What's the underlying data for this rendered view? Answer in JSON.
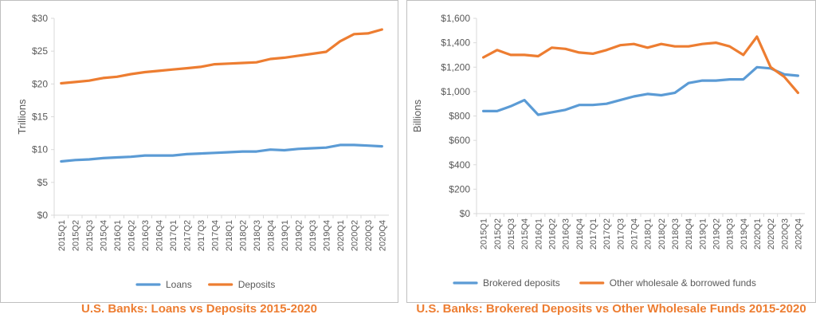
{
  "colors": {
    "blue": "#5b9bd5",
    "orange": "#ed7d31",
    "caption": "#ed7d31",
    "frame": "#bfbfbf",
    "grid": "#d9d9d9",
    "text": "#595959"
  },
  "chart_data": [
    {
      "type": "line",
      "title": "U.S. Banks: Loans vs Deposits 2015-2020",
      "ylabel": "Trillions",
      "ylim": [
        0,
        30
      ],
      "yticks": [
        "$0",
        "$5",
        "$10",
        "$15",
        "$20",
        "$25",
        "$30"
      ],
      "ytick_values": [
        0,
        5,
        10,
        15,
        20,
        25,
        30
      ],
      "grid": false,
      "legend": "bottom",
      "categories": [
        "2015Q1",
        "2015Q2",
        "2015Q3",
        "2015Q4",
        "2016Q1",
        "2016Q2",
        "2016Q3",
        "2016Q4",
        "2017Q1",
        "2017Q2",
        "2017Q3",
        "2017Q4",
        "2018Q1",
        "2018Q2",
        "2018Q3",
        "2018Q4",
        "2019Q1",
        "2019Q2",
        "2019Q3",
        "2019Q4",
        "2020Q1",
        "2020Q2",
        "2020Q3",
        "2020Q4"
      ],
      "series": [
        {
          "name": "Loans",
          "color": "#5b9bd5",
          "values": [
            8.2,
            8.4,
            8.5,
            8.7,
            8.8,
            8.9,
            9.1,
            9.1,
            9.1,
            9.3,
            9.4,
            9.5,
            9.6,
            9.7,
            9.7,
            10.0,
            9.9,
            10.1,
            10.2,
            10.3,
            10.7,
            10.7,
            10.6,
            10.5
          ]
        },
        {
          "name": "Deposits",
          "color": "#ed7d31",
          "values": [
            20.1,
            20.3,
            20.5,
            20.9,
            21.1,
            21.5,
            21.8,
            22.0,
            22.2,
            22.4,
            22.6,
            23.0,
            23.1,
            23.2,
            23.3,
            23.8,
            24.0,
            24.3,
            24.6,
            24.9,
            26.5,
            27.6,
            27.7,
            28.3
          ]
        }
      ]
    },
    {
      "type": "line",
      "title": "U.S. Banks: Brokered Deposits vs Other Wholesale Funds 2015-2020",
      "ylabel": "Billions",
      "ylim": [
        0,
        1600
      ],
      "yticks": [
        "$0",
        "$200",
        "$400",
        "$600",
        "$800",
        "$1,000",
        "$1,200",
        "$1,400",
        "$1,600"
      ],
      "ytick_values": [
        0,
        200,
        400,
        600,
        800,
        1000,
        1200,
        1400,
        1600
      ],
      "grid": false,
      "legend": "bottom",
      "categories": [
        "2015Q1",
        "2015Q2",
        "2015Q3",
        "2015Q4",
        "2016Q1",
        "2016Q2",
        "2016Q3",
        "2016Q4",
        "2017Q1",
        "2017Q2",
        "2017Q3",
        "2017Q4",
        "2018Q1",
        "2018Q2",
        "2018Q3",
        "2018Q4",
        "2019Q1",
        "2019Q2",
        "2019Q3",
        "2019Q4",
        "2020Q1",
        "2020Q2",
        "2020Q3",
        "2020Q4"
      ],
      "series": [
        {
          "name": "Brokered deposits",
          "color": "#5b9bd5",
          "values": [
            840,
            840,
            880,
            930,
            810,
            830,
            850,
            890,
            890,
            900,
            930,
            960,
            980,
            970,
            990,
            1070,
            1090,
            1090,
            1100,
            1100,
            1200,
            1190,
            1140,
            1130
          ]
        },
        {
          "name": "Other wholesale & borrowed funds",
          "color": "#ed7d31",
          "values": [
            1280,
            1340,
            1300,
            1300,
            1290,
            1360,
            1350,
            1320,
            1310,
            1340,
            1380,
            1390,
            1360,
            1390,
            1370,
            1370,
            1390,
            1400,
            1370,
            1300,
            1450,
            1200,
            1120,
            990
          ]
        }
      ]
    }
  ]
}
